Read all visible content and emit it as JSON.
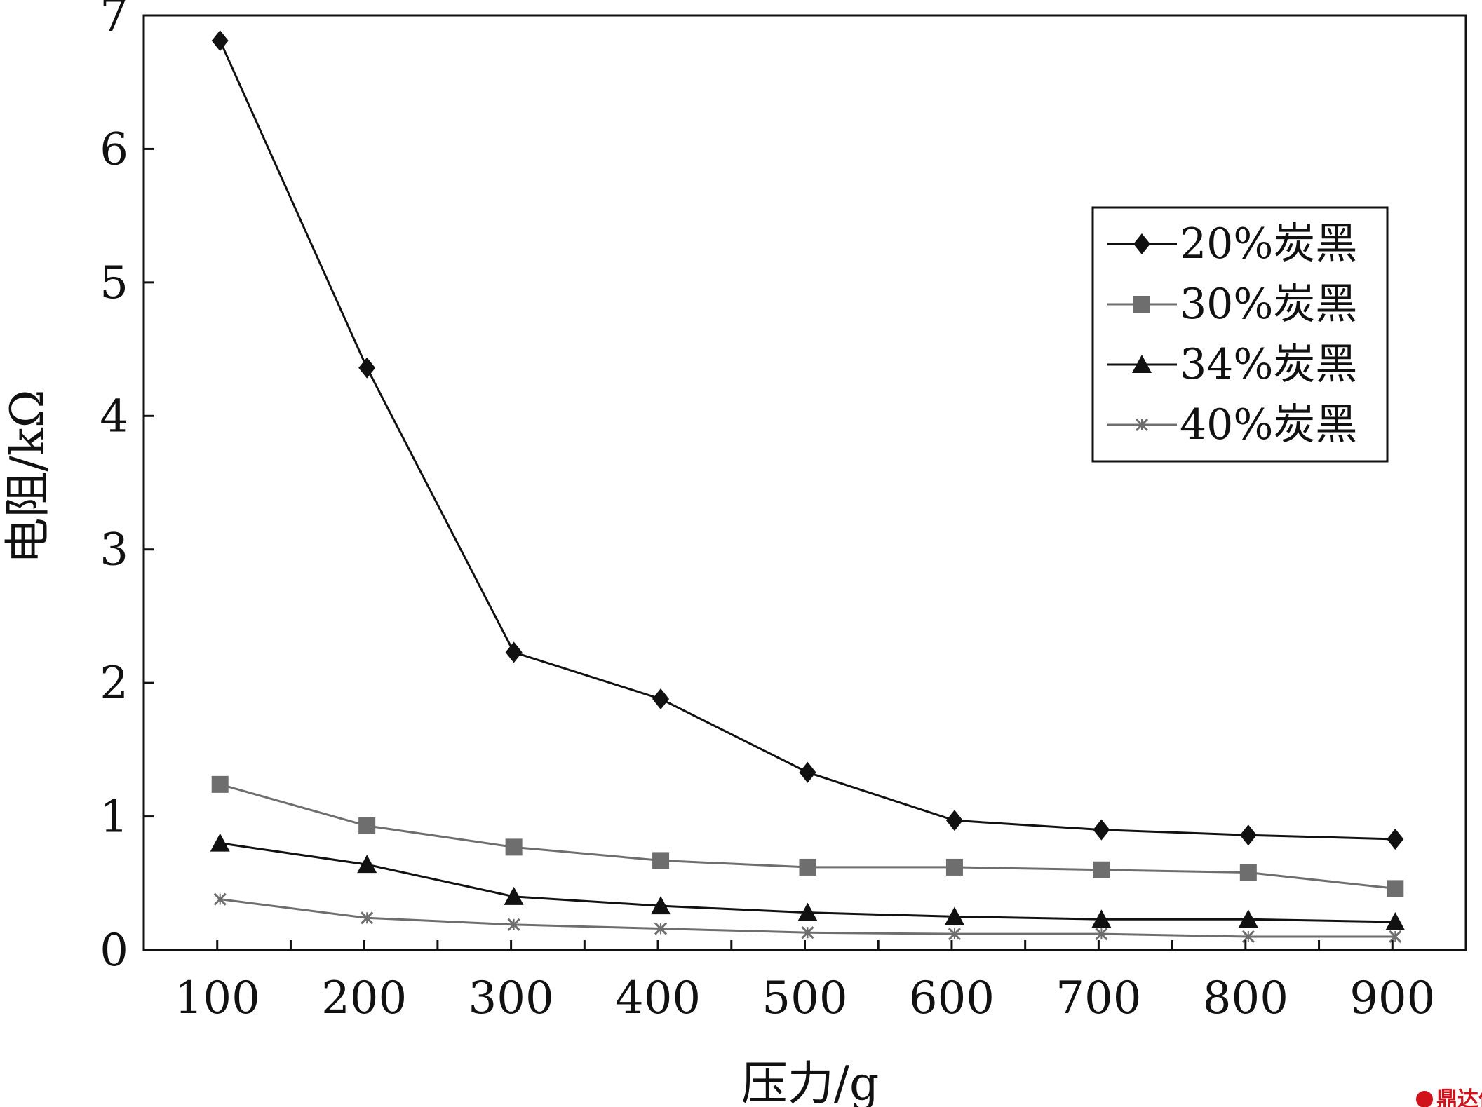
{
  "chart_data": {
    "type": "line",
    "title": "",
    "xlabel": "压力/g",
    "ylabel": "电阻/kΩ",
    "x": [
      100,
      200,
      300,
      400,
      500,
      600,
      700,
      800,
      900
    ],
    "xlim": [
      50,
      950
    ],
    "ylim": [
      0,
      7
    ],
    "yticks": [
      0,
      1,
      2,
      3,
      4,
      5,
      6,
      7
    ],
    "grid": false,
    "legend_position": "top-right",
    "series": [
      {
        "name": "20%炭黑",
        "marker": "diamond",
        "color": "#111111",
        "values": [
          6.81,
          4.36,
          2.23,
          1.88,
          1.33,
          0.97,
          0.9,
          0.86,
          0.83
        ]
      },
      {
        "name": "30%炭黑",
        "marker": "square",
        "color": "#6e6e6e",
        "values": [
          1.24,
          0.93,
          0.77,
          0.67,
          0.62,
          0.62,
          0.6,
          0.58,
          0.46
        ]
      },
      {
        "name": "34%炭黑",
        "marker": "triangle",
        "color": "#111111",
        "values": [
          0.8,
          0.64,
          0.4,
          0.33,
          0.28,
          0.25,
          0.23,
          0.23,
          0.21
        ]
      },
      {
        "name": "40%炭黑",
        "marker": "x",
        "color": "#6e6e6e",
        "values": [
          0.38,
          0.24,
          0.19,
          0.16,
          0.13,
          0.12,
          0.12,
          0.1,
          0.1
        ]
      }
    ]
  },
  "watermark": {
    "text": "鼎达信"
  }
}
